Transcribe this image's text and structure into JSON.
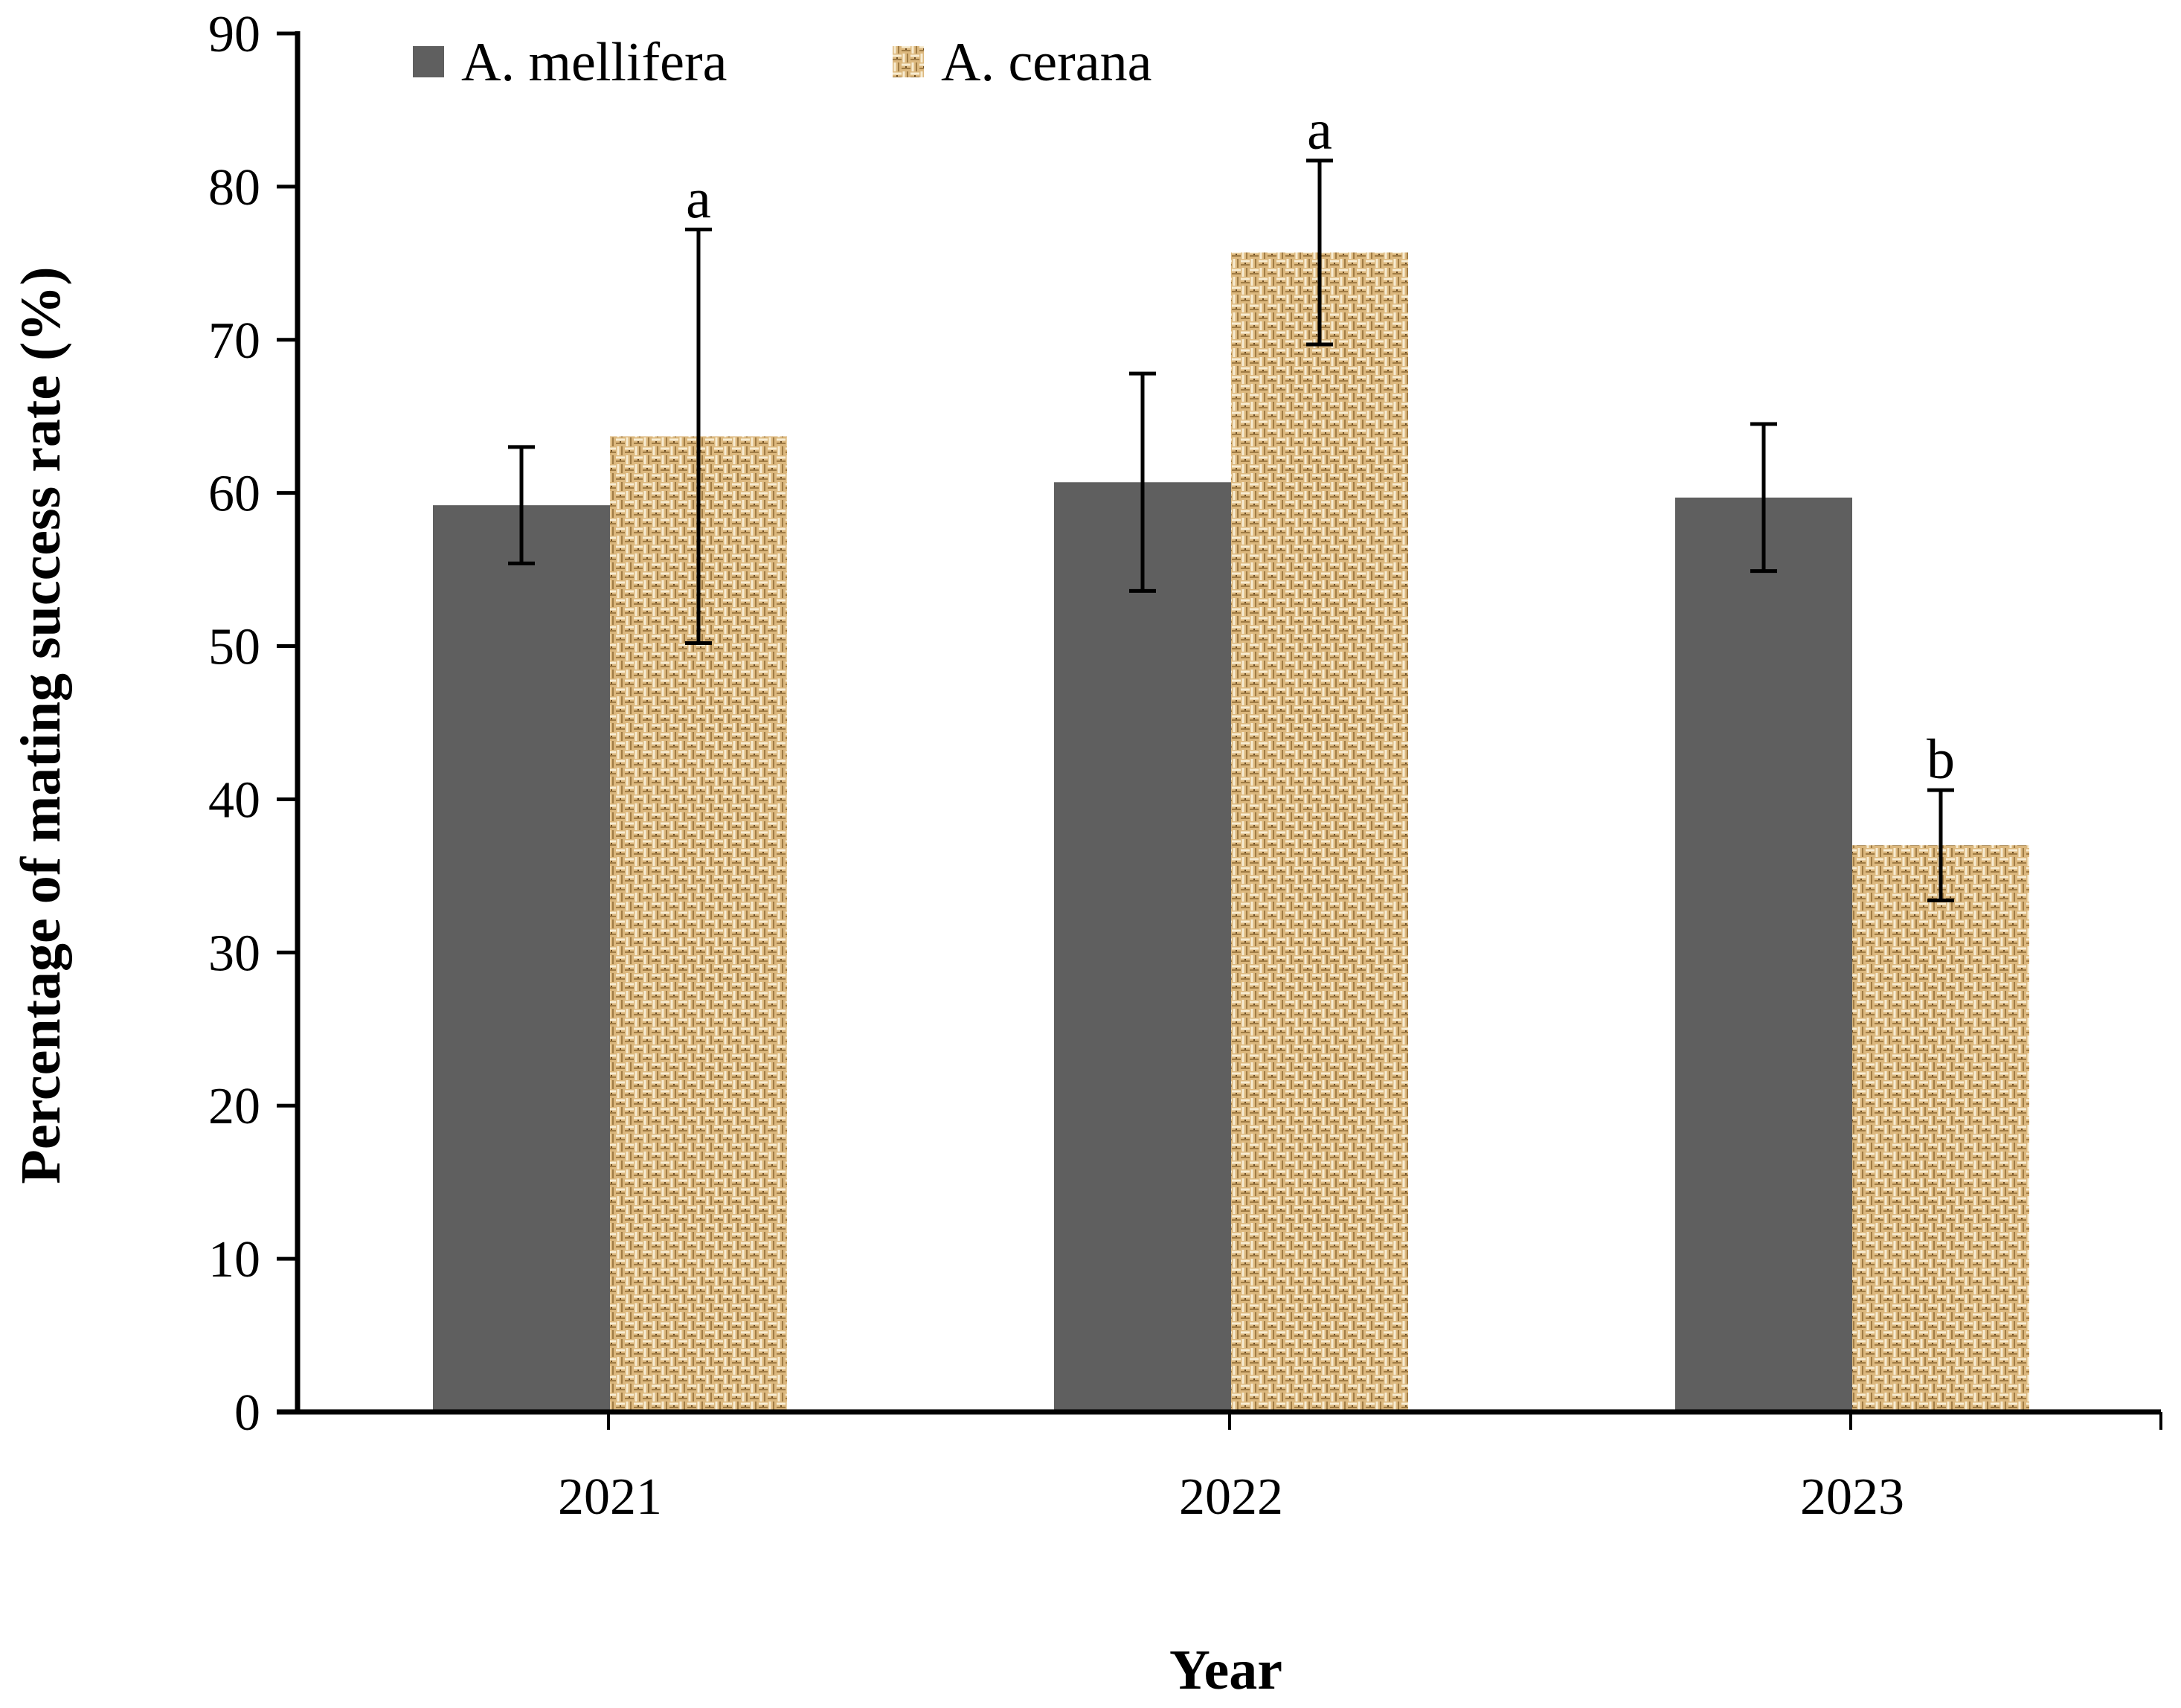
{
  "chart_data": {
    "type": "bar",
    "title": "",
    "xlabel": "Year",
    "ylabel": "Percentage of mating success rate (%)",
    "ylim": [
      0,
      90
    ],
    "yticks": [
      "0",
      "10",
      "20",
      "30",
      "40",
      "50",
      "60",
      "70",
      "80",
      "90"
    ],
    "categories": [
      "2021",
      "2022",
      "2023"
    ],
    "legend_position": "top-left",
    "grid": false,
    "series": [
      {
        "name": "A. mellifera",
        "color": "#5f5f5f",
        "pattern": "solid",
        "values": [
          59.2,
          60.7,
          59.7
        ],
        "error": [
          3.8,
          7.1,
          4.8
        ],
        "labels": [
          "",
          "",
          ""
        ]
      },
      {
        "name": "A. cerana",
        "color": "#d9b57a",
        "pattern": "woven-texture",
        "values": [
          63.7,
          75.7,
          37.0
        ],
        "error": [
          13.5,
          6.0,
          3.6
        ],
        "labels": [
          "a",
          "a",
          "b"
        ]
      }
    ]
  }
}
